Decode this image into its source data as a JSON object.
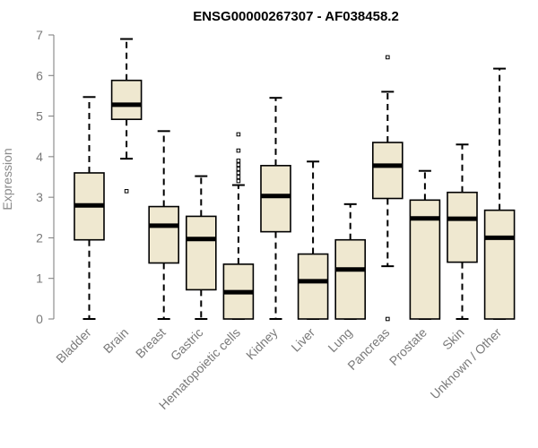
{
  "chart_data": {
    "type": "box",
    "title": "ENSG00000267307 - AF038458.2",
    "ylabel": "Expression",
    "xlabel": "",
    "ylim": [
      0,
      7
    ],
    "yticks": [
      0,
      1,
      2,
      3,
      4,
      5,
      6,
      7
    ],
    "grid": false,
    "colors": {
      "box_fill": "#efe8d0",
      "box_stroke": "#000000",
      "axis": "#7a7a7a",
      "title": "#000000"
    },
    "categories": [
      "Bladder",
      "Brain",
      "Breast",
      "Gastric",
      "Hematopoietic cells",
      "Kidney",
      "Liver",
      "Lung",
      "Pancreas",
      "Prostate",
      "Skin",
      "Unknown / Other"
    ],
    "boxes": [
      {
        "category": "Bladder",
        "whisker_low": 0.0,
        "q1": 1.95,
        "median": 2.8,
        "q3": 3.6,
        "whisker_high": 5.47,
        "outliers": []
      },
      {
        "category": "Brain",
        "whisker_low": 3.95,
        "q1": 4.92,
        "median": 5.28,
        "q3": 5.88,
        "whisker_high": 6.9,
        "outliers": [
          3.15
        ]
      },
      {
        "category": "Breast",
        "whisker_low": 0.0,
        "q1": 1.38,
        "median": 2.3,
        "q3": 2.77,
        "whisker_high": 4.63,
        "outliers": []
      },
      {
        "category": "Gastric",
        "whisker_low": 0.0,
        "q1": 0.72,
        "median": 1.97,
        "q3": 2.53,
        "whisker_high": 3.52,
        "outliers": []
      },
      {
        "category": "Hematopoietic cells",
        "whisker_low": 0.0,
        "q1": 0.0,
        "median": 0.66,
        "q3": 1.35,
        "whisker_high": 3.3,
        "outliers": [
          3.4,
          3.5,
          3.6,
          3.7,
          3.8,
          3.9,
          4.15,
          4.55
        ]
      },
      {
        "category": "Kidney",
        "whisker_low": 0.0,
        "q1": 2.15,
        "median": 3.03,
        "q3": 3.78,
        "whisker_high": 5.45,
        "outliers": []
      },
      {
        "category": "Liver",
        "whisker_low": 0.0,
        "q1": 0.0,
        "median": 0.93,
        "q3": 1.6,
        "whisker_high": 3.88,
        "outliers": []
      },
      {
        "category": "Lung",
        "whisker_low": 0.0,
        "q1": 0.0,
        "median": 1.22,
        "q3": 1.95,
        "whisker_high": 2.83,
        "outliers": []
      },
      {
        "category": "Pancreas",
        "whisker_low": 1.3,
        "q1": 2.97,
        "median": 3.78,
        "q3": 4.35,
        "whisker_high": 5.6,
        "outliers": [
          6.45,
          0.0
        ]
      },
      {
        "category": "Prostate",
        "whisker_low": 0.0,
        "q1": 0.0,
        "median": 2.48,
        "q3": 2.93,
        "whisker_high": 3.65,
        "outliers": []
      },
      {
        "category": "Skin",
        "whisker_low": 0.0,
        "q1": 1.4,
        "median": 2.47,
        "q3": 3.12,
        "whisker_high": 4.3,
        "outliers": []
      },
      {
        "category": "Unknown / Other",
        "whisker_low": 0.0,
        "q1": 0.0,
        "median": 2.0,
        "q3": 2.68,
        "whisker_high": 6.17,
        "outliers": []
      }
    ]
  }
}
